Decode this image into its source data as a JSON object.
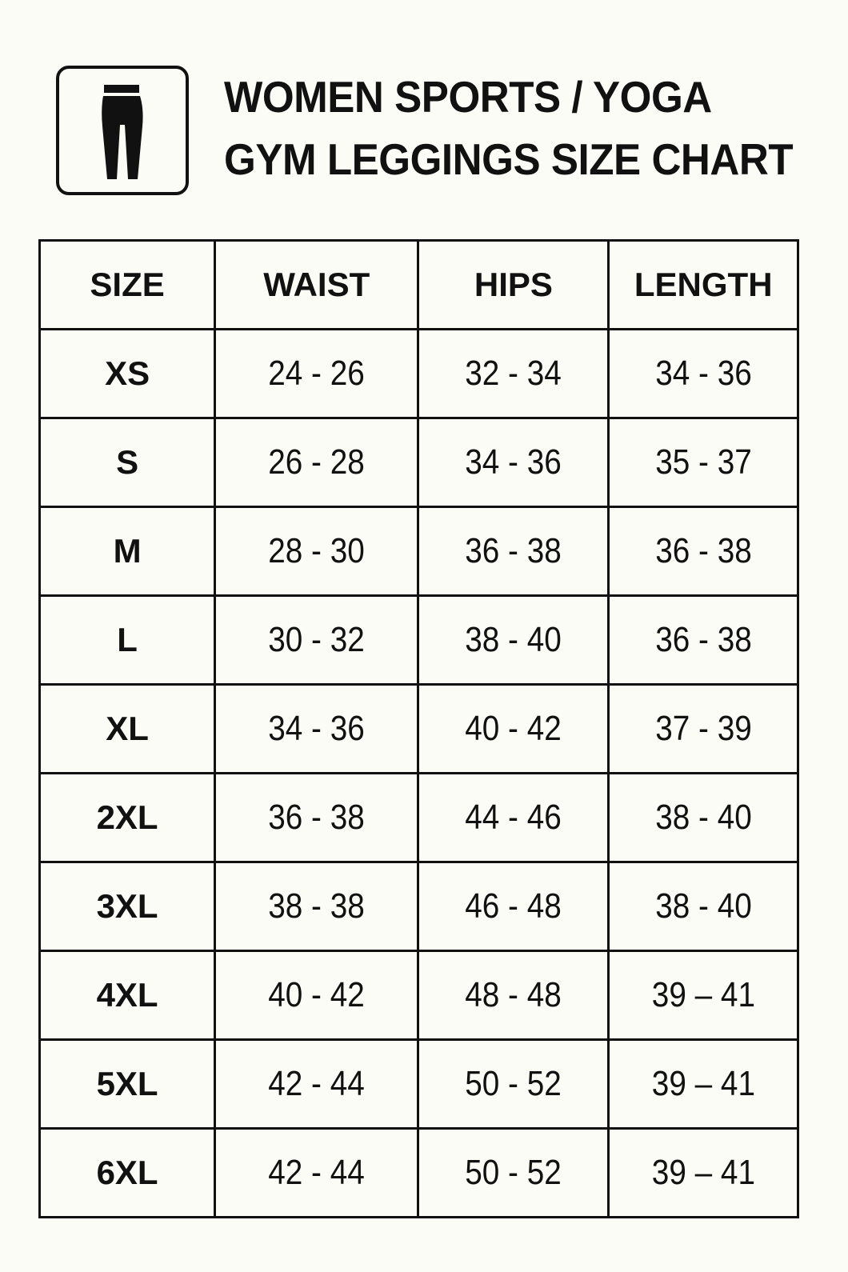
{
  "header": {
    "icon": "leggings-icon",
    "title_lines": [
      "WOMEN SPORTS / YOGA",
      "GYM LEGGINGS SIZE CHART"
    ]
  },
  "table": {
    "columns": [
      "SIZE",
      "WAIST",
      "HIPS",
      "LENGTH"
    ],
    "rows": [
      [
        "XS",
        "24 - 26",
        "32 - 34",
        "34 - 36"
      ],
      [
        "S",
        "26 - 28",
        "34 - 36",
        "35 - 37"
      ],
      [
        "M",
        "28 - 30",
        "36 - 38",
        "36 - 38"
      ],
      [
        "L",
        "30 - 32",
        "38 - 40",
        "36 - 38"
      ],
      [
        "XL",
        "34 - 36",
        "40 - 42",
        "37 - 39"
      ],
      [
        "2XL",
        "36 - 38",
        "44 - 46",
        "38 - 40"
      ],
      [
        "3XL",
        "38 - 38",
        "46 - 48",
        "38 - 40"
      ],
      [
        "4XL",
        "40 - 42",
        "48 - 48",
        "39 – 41"
      ],
      [
        "5XL",
        "42 - 44",
        "50 - 52",
        "39 – 41"
      ],
      [
        "6XL",
        "42 - 44",
        "50 - 52",
        "39 – 41"
      ]
    ]
  }
}
